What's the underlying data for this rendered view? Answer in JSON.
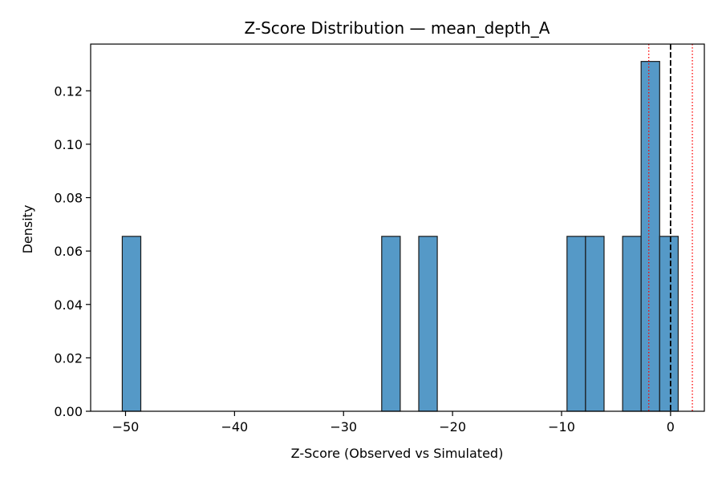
{
  "chart_data": {
    "type": "bar",
    "title": "Z-Score Distribution — mean_depth_A",
    "xlabel": "Z-Score (Observed vs Simulated)",
    "ylabel": "Density",
    "xlim": [
      -53.2,
      3.1
    ],
    "ylim": [
      0,
      0.1375
    ],
    "xticks": [
      -50,
      -40,
      -30,
      -20,
      -10,
      0
    ],
    "xtick_labels": [
      "−50",
      "−40",
      "−30",
      "−20",
      "−10",
      "0"
    ],
    "yticks": [
      0,
      0.02,
      0.04,
      0.06,
      0.08,
      0.1,
      0.12
    ],
    "ytick_labels": [
      "0.00",
      "0.02",
      "0.04",
      "0.06",
      "0.08",
      "0.10",
      "0.12"
    ],
    "bin_width": 1.7,
    "bins": [
      {
        "x_start": -50.3,
        "density": 0.0655
      },
      {
        "x_start": -26.5,
        "density": 0.0655
      },
      {
        "x_start": -23.1,
        "density": 0.0655
      },
      {
        "x_start": -9.5,
        "density": 0.0655
      },
      {
        "x_start": -7.8,
        "density": 0.0655
      },
      {
        "x_start": -4.4,
        "density": 0.0655
      },
      {
        "x_start": -2.7,
        "density": 0.131
      },
      {
        "x_start": -1.0,
        "density": 0.0655
      }
    ],
    "reference_lines": [
      {
        "x": 0,
        "style": "dashed",
        "color": "#000000"
      },
      {
        "x": -2,
        "style": "dotted",
        "color": "#ff0000"
      },
      {
        "x": 2,
        "style": "dotted",
        "color": "#ff0000"
      }
    ],
    "bar_color": "#5599c7",
    "bar_edge_color": "#1a1a1a",
    "grid": false
  }
}
